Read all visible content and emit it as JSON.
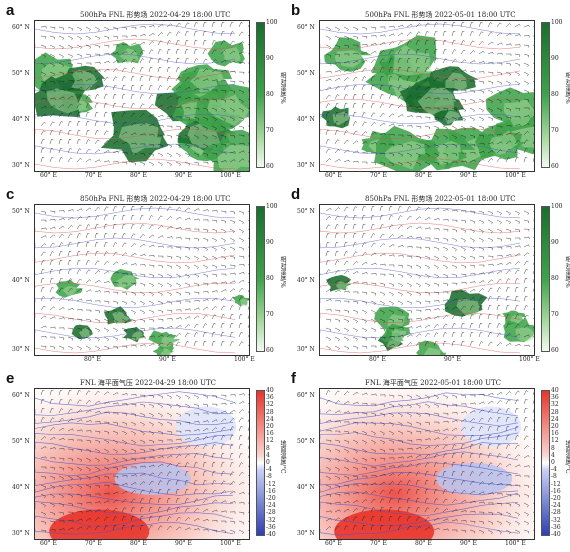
{
  "panels": [
    {
      "id": "a",
      "letter": "a",
      "title": "500hPa FNL 形势场 2022-04-29 18:00 UTC",
      "kind": "rh",
      "lat_ticks": [
        "60° N",
        "50° N",
        "40° N",
        "30° N"
      ],
      "lon_ticks": [
        "60° E",
        "70° E",
        "80° E",
        "90° E",
        "100° E"
      ],
      "cbar_ticks": [
        "100",
        "90",
        "80",
        "70",
        "60"
      ],
      "cbar_label": "相对湿度/%"
    },
    {
      "id": "b",
      "letter": "b",
      "title": "500hPa FNL 形势场 2022-05-01 18:00 UTC",
      "kind": "rh",
      "lat_ticks": [
        "60° N",
        "50° N",
        "40° N",
        "30° N"
      ],
      "lon_ticks": [
        "60° E",
        "70° E",
        "80° E",
        "90° E",
        "100° E"
      ],
      "cbar_ticks": [
        "100",
        "90",
        "80",
        "70",
        "60"
      ],
      "cbar_label": "相对湿度/%"
    },
    {
      "id": "c",
      "letter": "c",
      "title": "850hPa FNL 形势场 2022-04-29 18:00 UTC",
      "kind": "rh",
      "lat_ticks": [
        "50° N",
        "40° N",
        "30° N"
      ],
      "lon_ticks": [
        "80° E",
        "90° E",
        "100° E"
      ],
      "cbar_ticks": [
        "100",
        "90",
        "80",
        "70",
        "60"
      ],
      "cbar_label": "相对湿度/%"
    },
    {
      "id": "d",
      "letter": "d",
      "title": "850hPa FNL 形势场 2022-05-01 18:00 UTC",
      "kind": "rh",
      "lat_ticks": [
        "50° N",
        "40° N",
        "30° N"
      ],
      "lon_ticks": [
        "80° E",
        "90° E",
        "100° E"
      ],
      "cbar_ticks": [
        "100",
        "90",
        "80",
        "70",
        "60"
      ],
      "cbar_label": "相对湿度/%"
    },
    {
      "id": "e",
      "letter": "e",
      "title": "FNL 海平面气压 2022-04-29 18:00 UTC",
      "kind": "temp",
      "lat_ticks": [
        "60° N",
        "50° N",
        "40° N",
        "30° N"
      ],
      "lon_ticks": [
        "60° E",
        "70° E",
        "80° E",
        "90° E",
        "100° E"
      ],
      "cbar_ticks": [
        "40",
        "36",
        "32",
        "28",
        "24",
        "20",
        "16",
        "12",
        "8",
        "4",
        "0",
        "-4",
        "-8",
        "-12",
        "-16",
        "-20",
        "-24",
        "-28",
        "-32",
        "-36",
        "-40"
      ],
      "cbar_label": "地面温度/°C"
    },
    {
      "id": "f",
      "letter": "f",
      "title": "FNL 海平面气压 2022-05-01 18:00 UTC",
      "kind": "temp",
      "lat_ticks": [
        "60° N",
        "50° N",
        "40° N",
        "30° N"
      ],
      "lon_ticks": [
        "60° E",
        "70° E",
        "80° E",
        "90° E",
        "100° E"
      ],
      "cbar_ticks": [
        "40",
        "36",
        "32",
        "28",
        "24",
        "20",
        "16",
        "12",
        "8",
        "4",
        "0",
        "-4",
        "-8",
        "-12",
        "-16",
        "-20",
        "-24",
        "-28",
        "-32",
        "-36",
        "-40"
      ],
      "cbar_label": "地面温度/°C"
    }
  ],
  "colors": {
    "rh_dark": "#1a6e2e",
    "rh_mid": "#3fa34a",
    "rh_light": "#a9d9a0",
    "temp_warm": "#e8342b",
    "temp_cold": "#2d3fb0",
    "contour_blue": "#4a55c9",
    "contour_red": "#d9534f",
    "barb": "#1c1c1c"
  }
}
